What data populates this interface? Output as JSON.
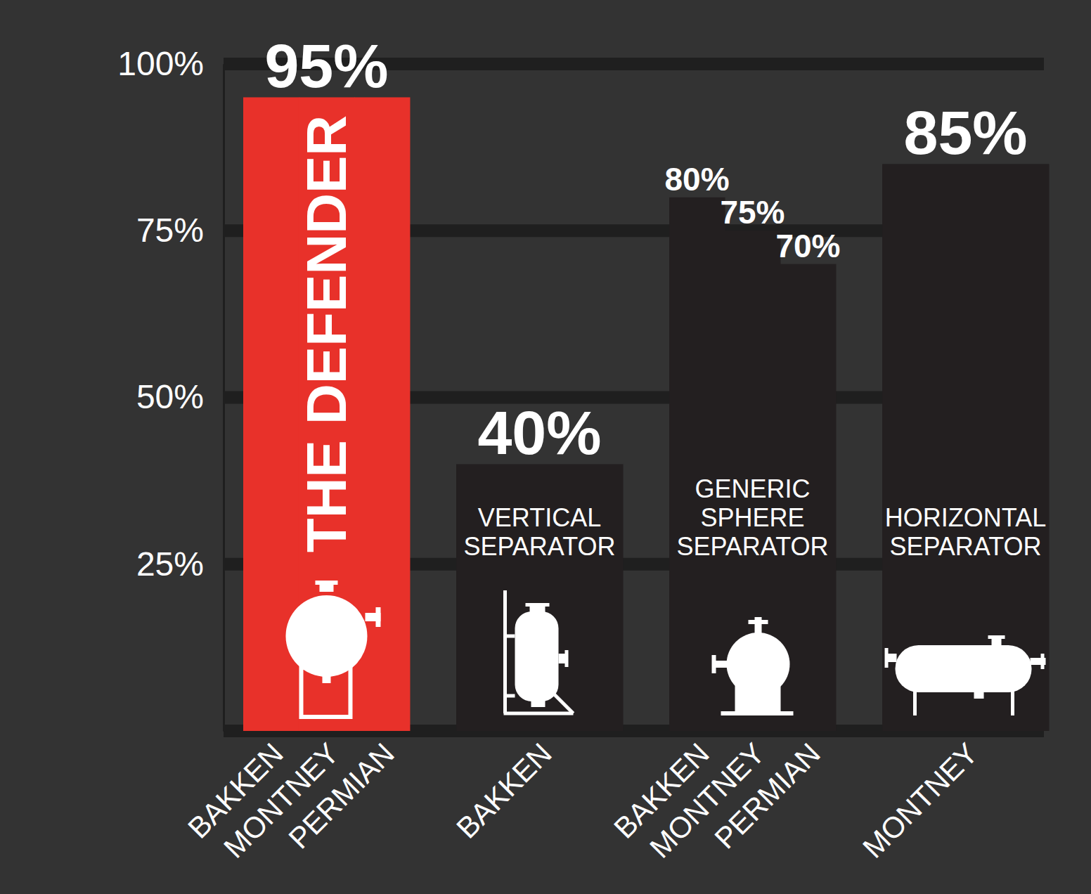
{
  "chart_data": {
    "type": "bar",
    "ylim": [
      0,
      100
    ],
    "yticks": [
      {
        "value": 25,
        "label": "25%"
      },
      {
        "value": 50,
        "label": "50%"
      },
      {
        "value": 75,
        "label": "75%"
      },
      {
        "value": 100,
        "label": "100%"
      }
    ],
    "grid": true,
    "data_labels": true,
    "series": [
      {
        "name": "THE DEFENDER",
        "color": "#e8312a",
        "categories": [
          "BAKKEN",
          "MONTNEY",
          "PERMIAN"
        ],
        "values": [
          95,
          95,
          95
        ],
        "value_labels": [
          "95%",
          null,
          null
        ]
      },
      {
        "name": "VERTICAL SEPARATOR",
        "color": "#231f20",
        "categories": [
          "BAKKEN"
        ],
        "values": [
          40
        ],
        "value_labels": [
          "40%"
        ]
      },
      {
        "name": "GENERIC SPHERE SEPARATOR",
        "color": "#231f20",
        "categories": [
          "BAKKEN",
          "MONTNEY",
          "PERMIAN"
        ],
        "values": [
          80,
          75,
          70
        ],
        "value_labels": [
          "80%",
          "75%",
          "70%"
        ]
      },
      {
        "name": "HORIZONTAL SEPARATOR",
        "color": "#231f20",
        "categories": [
          "MONTNEY"
        ],
        "values": [
          85
        ],
        "value_labels": [
          "85%"
        ]
      }
    ]
  }
}
